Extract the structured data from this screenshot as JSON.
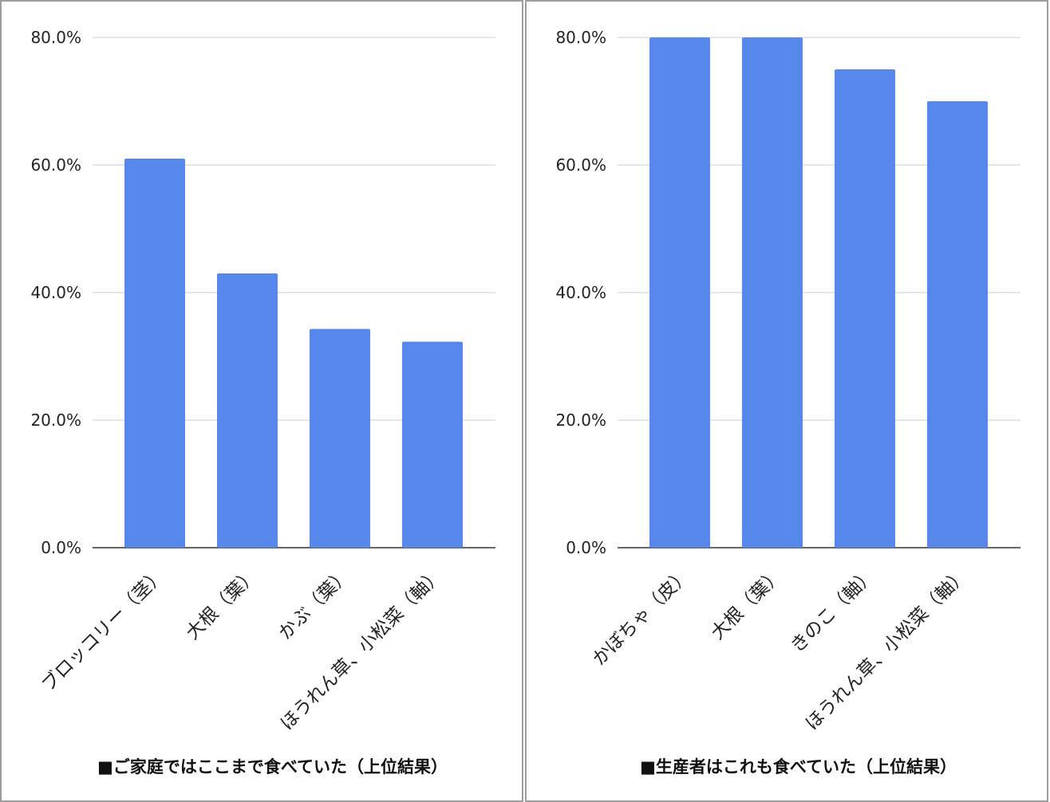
{
  "chart_data": [
    {
      "type": "bar",
      "title": "■ご家庭ではここまで食べていた（上位結果）",
      "categories": [
        "ブロッコリー（茎）",
        "大根（葉）",
        "かぶ（葉）",
        "ほうれん草、小松菜（軸）"
      ],
      "values": [
        61.0,
        43.0,
        34.3,
        32.3
      ],
      "ylim": [
        0,
        80
      ],
      "yticks": [
        "0.0%",
        "20.0%",
        "40.0%",
        "60.0%",
        "80.0%"
      ],
      "bar_color": "#5588ea",
      "grid": true,
      "xlabel": "",
      "ylabel": ""
    },
    {
      "type": "bar",
      "title": "■生産者はこれも食べていた（上位結果）",
      "categories": [
        "かぼちゃ（皮）",
        "大根（葉）",
        "きのこ（軸）",
        "ほうれん草、小松菜（軸）"
      ],
      "values": [
        80.0,
        80.0,
        75.0,
        70.0
      ],
      "ylim": [
        0,
        80
      ],
      "yticks": [
        "0.0%",
        "20.0%",
        "40.0%",
        "60.0%",
        "80.0%"
      ],
      "bar_color": "#5588ea",
      "grid": true,
      "xlabel": "",
      "ylabel": ""
    }
  ]
}
